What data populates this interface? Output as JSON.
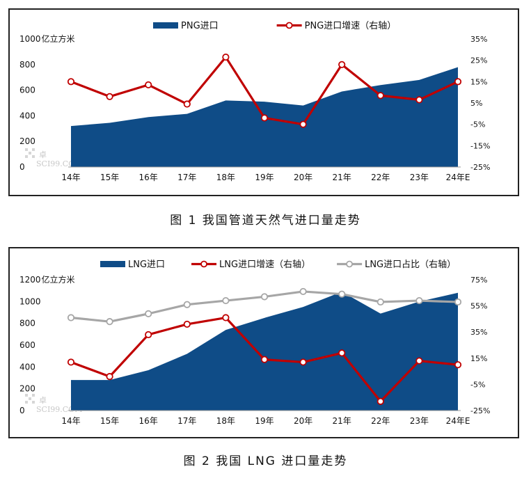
{
  "figure1": {
    "caption": "图 1 我国管道天然气进口量走势",
    "unit_label": "亿立方米",
    "watermark": "SCI99.COM",
    "watermark_char": "卓",
    "chart_data": {
      "type": "area+line",
      "categories": [
        "14年",
        "15年",
        "16年",
        "17年",
        "18年",
        "19年",
        "20年",
        "21年",
        "22年",
        "23年",
        "24年E"
      ],
      "series": [
        {
          "name": "PNG进口",
          "kind": "area",
          "axis": "left",
          "color": "#0f4c87",
          "values": [
            320,
            345,
            390,
            415,
            520,
            510,
            480,
            590,
            640,
            680,
            780
          ]
        },
        {
          "name": "PNG进口增速（右轴）",
          "kind": "line",
          "axis": "right",
          "color": "#c00000",
          "values": [
            15,
            8,
            13.5,
            4.5,
            26.5,
            -2,
            -5,
            23,
            8.5,
            6.5,
            15
          ]
        }
      ],
      "y_left": {
        "lim": [
          0,
          1000
        ],
        "ticks": [
          0,
          200,
          400,
          600,
          800,
          1000
        ]
      },
      "y_right": {
        "lim": [
          -25,
          35
        ],
        "ticks": [
          -25,
          -15,
          -5,
          5,
          15,
          25,
          35
        ],
        "tick_labels": [
          "-25%",
          "-15%",
          "-5%",
          "5%",
          "15%",
          "25%",
          "35%"
        ]
      },
      "legend": "top-center"
    }
  },
  "figure2": {
    "caption": "图 2  我国 LNG 进口量走势",
    "unit_label": "亿立方米",
    "watermark": "SCI99.COM",
    "watermark_char": "卓",
    "chart_data": {
      "type": "area+line",
      "categories": [
        "14年",
        "15年",
        "16年",
        "17年",
        "18年",
        "19年",
        "20年",
        "21年",
        "22年",
        "23年",
        "24年E"
      ],
      "series": [
        {
          "name": "LNG进口",
          "kind": "area",
          "axis": "left",
          "color": "#0f4c87",
          "values": [
            280,
            280,
            370,
            520,
            740,
            850,
            950,
            1090,
            890,
            1000,
            1080
          ]
        },
        {
          "name": "LNG进口增速（右轴）",
          "kind": "line",
          "axis": "right",
          "color": "#c00000",
          "values": [
            12,
            1,
            33,
            41,
            46,
            14,
            12,
            19,
            -18,
            13,
            10
          ]
        },
        {
          "name": "LNG进口占比（右轴）",
          "kind": "line",
          "axis": "right",
          "color": "#a6a6a6",
          "values": [
            46,
            43,
            49,
            56,
            59,
            62,
            66,
            64,
            58,
            59,
            58
          ]
        }
      ],
      "y_left": {
        "lim": [
          0,
          1200
        ],
        "ticks": [
          0,
          200,
          400,
          600,
          800,
          1000,
          1200
        ]
      },
      "y_right": {
        "lim": [
          -25,
          75
        ],
        "ticks": [
          -25,
          -5,
          15,
          35,
          55,
          75
        ],
        "tick_labels": [
          "-25%",
          "-5%",
          "15%",
          "35%",
          "55%",
          "75%"
        ]
      },
      "legend": "top-center"
    }
  }
}
